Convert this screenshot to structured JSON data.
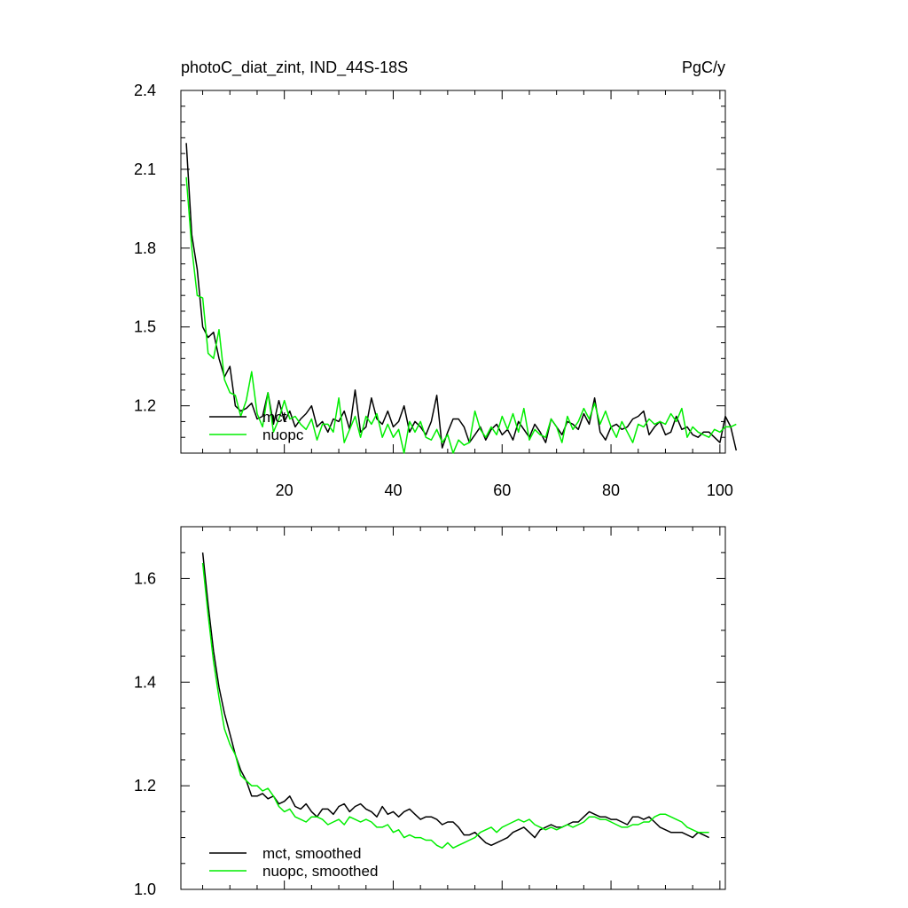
{
  "chart_data": [
    {
      "type": "line",
      "title": "photoC_diat_zint, IND_44S-18S",
      "units": "PgC/y",
      "xlim": [
        1,
        101
      ],
      "ylim": [
        1.02,
        2.4
      ],
      "x_ticks": [
        20,
        40,
        60,
        80,
        100
      ],
      "x_tick_labels": [
        "20",
        "40",
        "60",
        "80",
        "100"
      ],
      "y_ticks": [
        1.2,
        1.5,
        1.8,
        2.1,
        2.4
      ],
      "y_tick_labels": [
        "1.2",
        "1.5",
        "1.8",
        "2.1",
        "2.4"
      ],
      "legend_position": "bottom-left",
      "series": [
        {
          "name": "mct",
          "color": "#000000",
          "x_start": 2,
          "values": [
            2.2,
            1.85,
            1.72,
            1.5,
            1.46,
            1.48,
            1.38,
            1.31,
            1.35,
            1.2,
            1.18,
            1.19,
            1.21,
            1.15,
            1.16,
            1.25,
            1.13,
            1.22,
            1.14,
            1.18,
            1.12,
            1.15,
            1.17,
            1.2,
            1.12,
            1.14,
            1.1,
            1.15,
            1.14,
            1.18,
            1.11,
            1.26,
            1.1,
            1.12,
            1.23,
            1.15,
            1.13,
            1.18,
            1.12,
            1.14,
            1.2,
            1.1,
            1.14,
            1.12,
            1.09,
            1.14,
            1.24,
            1.04,
            1.1,
            1.15,
            1.15,
            1.12,
            1.06,
            1.09,
            1.12,
            1.07,
            1.11,
            1.13,
            1.09,
            1.11,
            1.07,
            1.14,
            1.11,
            1.08,
            1.13,
            1.1,
            1.06,
            1.15,
            1.12,
            1.09,
            1.14,
            1.13,
            1.11,
            1.17,
            1.13,
            1.23,
            1.1,
            1.07,
            1.12,
            1.13,
            1.11,
            1.12,
            1.15,
            1.16,
            1.18,
            1.09,
            1.12,
            1.14,
            1.09,
            1.1,
            1.16,
            1.11,
            1.12,
            1.09,
            1.08,
            1.1,
            1.1,
            1.08,
            1.06,
            1.16,
            1.12,
            1.03
          ]
        },
        {
          "name": "nuopc",
          "color": "#00ee00",
          "x_start": 2,
          "values": [
            2.07,
            1.8,
            1.62,
            1.61,
            1.4,
            1.38,
            1.49,
            1.3,
            1.25,
            1.24,
            1.16,
            1.22,
            1.33,
            1.17,
            1.12,
            1.25,
            1.1,
            1.15,
            1.22,
            1.15,
            1.16,
            1.13,
            1.11,
            1.15,
            1.07,
            1.13,
            1.13,
            1.1,
            1.23,
            1.06,
            1.11,
            1.16,
            1.08,
            1.16,
            1.13,
            1.17,
            1.08,
            1.13,
            1.08,
            1.11,
            1.02,
            1.14,
            1.1,
            1.14,
            1.08,
            1.07,
            1.11,
            1.06,
            1.09,
            1.02,
            1.07,
            1.05,
            1.06,
            1.18,
            1.11,
            1.08,
            1.12,
            1.09,
            1.16,
            1.11,
            1.17,
            1.1,
            1.19,
            1.07,
            1.11,
            1.09,
            1.08,
            1.15,
            1.12,
            1.06,
            1.16,
            1.11,
            1.14,
            1.19,
            1.15,
            1.21,
            1.13,
            1.18,
            1.12,
            1.08,
            1.14,
            1.1,
            1.06,
            1.13,
            1.12,
            1.15,
            1.13,
            1.14,
            1.13,
            1.17,
            1.14,
            1.19,
            1.08,
            1.12,
            1.1,
            1.09,
            1.08,
            1.11,
            1.1,
            1.12,
            1.12,
            1.13
          ]
        }
      ]
    },
    {
      "type": "line",
      "xlim": [
        1,
        101
      ],
      "ylim": [
        1.0,
        1.7
      ],
      "x_ticks": [
        20,
        40,
        60,
        80,
        100
      ],
      "y_ticks": [
        1.0,
        1.2,
        1.4,
        1.6
      ],
      "y_tick_labels": [
        "1.0",
        "1.2",
        "1.4",
        "1.6"
      ],
      "legend_position": "bottom-left",
      "series": [
        {
          "name": "mct, smoothed",
          "color": "#000000",
          "x_start": 5,
          "values": [
            1.65,
            1.55,
            1.46,
            1.39,
            1.34,
            1.3,
            1.26,
            1.23,
            1.21,
            1.18,
            1.18,
            1.185,
            1.175,
            1.18,
            1.165,
            1.17,
            1.18,
            1.16,
            1.155,
            1.165,
            1.15,
            1.14,
            1.155,
            1.155,
            1.145,
            1.16,
            1.165,
            1.15,
            1.16,
            1.165,
            1.155,
            1.15,
            1.14,
            1.16,
            1.145,
            1.15,
            1.14,
            1.15,
            1.155,
            1.145,
            1.135,
            1.14,
            1.14,
            1.135,
            1.125,
            1.13,
            1.13,
            1.12,
            1.105,
            1.105,
            1.11,
            1.1,
            1.09,
            1.085,
            1.09,
            1.095,
            1.1,
            1.11,
            1.115,
            1.12,
            1.11,
            1.1,
            1.115,
            1.12,
            1.125,
            1.12,
            1.12,
            1.125,
            1.13,
            1.13,
            1.14,
            1.15,
            1.145,
            1.14,
            1.14,
            1.135,
            1.135,
            1.13,
            1.125,
            1.14,
            1.14,
            1.135,
            1.14,
            1.13,
            1.12,
            1.115,
            1.11,
            1.11,
            1.11,
            1.105,
            1.1,
            1.11,
            1.105,
            1.1
          ]
        },
        {
          "name": "nuopc, smoothed",
          "color": "#00ee00",
          "x_start": 5,
          "values": [
            1.63,
            1.53,
            1.44,
            1.37,
            1.31,
            1.28,
            1.26,
            1.22,
            1.21,
            1.2,
            1.2,
            1.19,
            1.195,
            1.18,
            1.16,
            1.15,
            1.155,
            1.14,
            1.135,
            1.13,
            1.14,
            1.14,
            1.135,
            1.125,
            1.13,
            1.135,
            1.125,
            1.14,
            1.135,
            1.13,
            1.135,
            1.13,
            1.12,
            1.12,
            1.125,
            1.11,
            1.115,
            1.1,
            1.105,
            1.1,
            1.1,
            1.095,
            1.095,
            1.085,
            1.08,
            1.09,
            1.08,
            1.085,
            1.09,
            1.095,
            1.1,
            1.11,
            1.115,
            1.12,
            1.11,
            1.12,
            1.125,
            1.13,
            1.135,
            1.13,
            1.135,
            1.125,
            1.12,
            1.115,
            1.12,
            1.115,
            1.12,
            1.125,
            1.12,
            1.125,
            1.13,
            1.14,
            1.14,
            1.135,
            1.135,
            1.13,
            1.125,
            1.12,
            1.12,
            1.125,
            1.125,
            1.13,
            1.13,
            1.14,
            1.145,
            1.145,
            1.14,
            1.135,
            1.13,
            1.12,
            1.115,
            1.11,
            1.11,
            1.11
          ]
        }
      ]
    }
  ]
}
